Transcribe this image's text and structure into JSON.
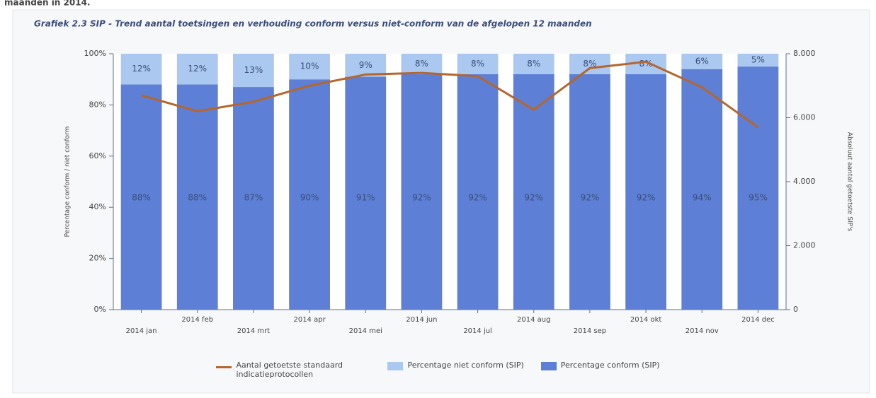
{
  "header": "maanden in 2014.",
  "chart_data": {
    "type": "stacked_bar_line",
    "title": "Grafiek 2.3 SIP - Trend aantal toetsingen en verhouding conform versus niet-conform van de afgelopen 12 maanden",
    "y_label": "Percentage conform / niet conform",
    "y2_label": "Absoluut aantal getoetste SIP's",
    "categories": [
      "2014 jan",
      "2014 feb",
      "2014 mrt",
      "2014 apr",
      "2014 mei",
      "2014 jun",
      "2014 jul",
      "2014 aug",
      "2014 sep",
      "2014 okt",
      "2014 nov",
      "2014 dec"
    ],
    "series": [
      {
        "name": "Percentage conform (SIP)",
        "type": "bar",
        "color": "#5d80d6",
        "values": [
          88,
          88,
          87,
          90,
          91,
          92,
          92,
          92,
          92,
          92,
          94,
          95
        ],
        "value_labels": [
          "88%",
          "88%",
          "87%",
          "90%",
          "91%",
          "92%",
          "92%",
          "92%",
          "92%",
          "92%",
          "94%",
          "95%"
        ]
      },
      {
        "name": "Percentage niet conform (SIP)",
        "type": "bar",
        "color": "#abc9f0",
        "values": [
          12,
          12,
          13,
          10,
          9,
          8,
          8,
          8,
          8,
          8,
          6,
          5
        ],
        "value_labels": [
          "12%",
          "12%",
          "13%",
          "10%",
          "9%",
          "8%",
          "8%",
          "8%",
          "8%",
          "8%",
          "6%",
          "5%"
        ]
      },
      {
        "name": "Aantal getoetste standaard indicatieprotocollen",
        "type": "line",
        "axis": "y2",
        "color": "#b5662c",
        "values": [
          6700,
          6200,
          6500,
          7000,
          7350,
          7400,
          7300,
          6250,
          7550,
          7750,
          6950,
          5700
        ]
      }
    ],
    "ylim": [
      0,
      100
    ],
    "yticks": [
      {
        "value": 0,
        "label": "0%"
      },
      {
        "value": 20,
        "label": "20%"
      },
      {
        "value": 40,
        "label": "40%"
      },
      {
        "value": 60,
        "label": "60%"
      },
      {
        "value": 80,
        "label": "80%"
      },
      {
        "value": 100,
        "label": "100%"
      }
    ],
    "y2lim": [
      0,
      8000
    ],
    "y2ticks": [
      0,
      {
        "value": 2000,
        "label": "2.000"
      },
      {
        "value": 4000,
        "label": "4.000"
      },
      {
        "value": 6000,
        "label": "6.000"
      },
      {
        "value": 8000,
        "label": "8.000"
      }
    ],
    "legend": "bottom"
  }
}
